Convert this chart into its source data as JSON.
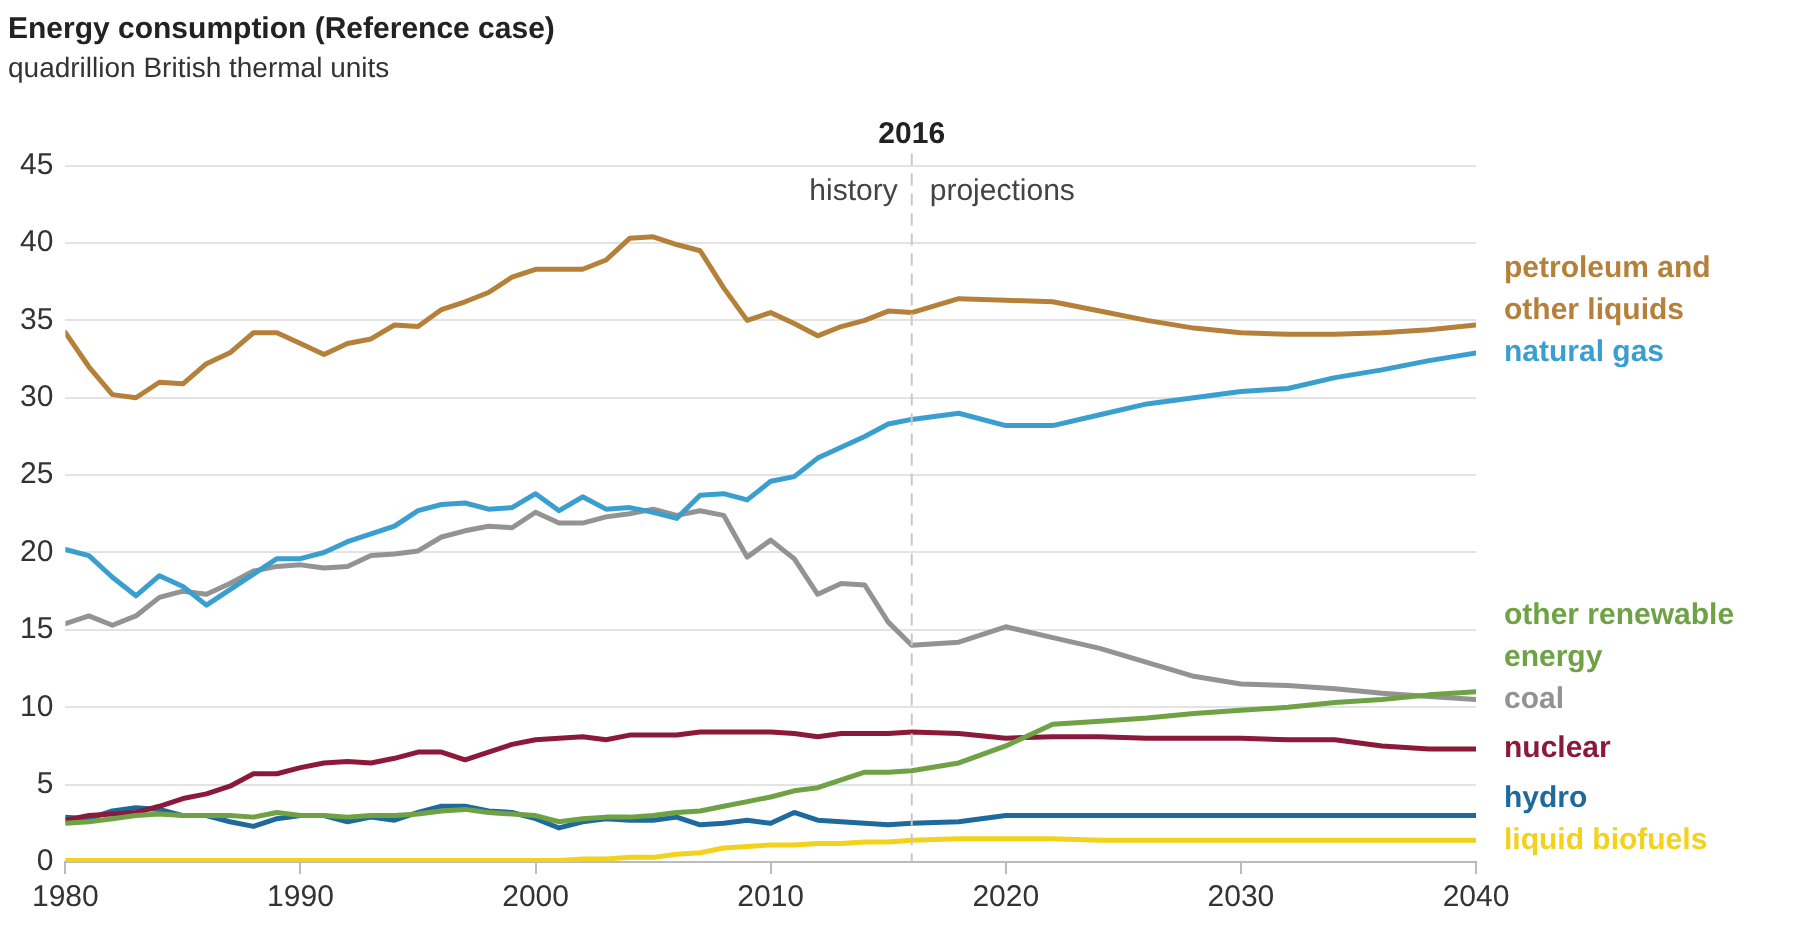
{
  "chart_data": {
    "type": "line",
    "title": "Energy consumption (Reference case)",
    "subtitle": "quadrillion British thermal units",
    "x": [
      1980,
      1981,
      1982,
      1983,
      1984,
      1985,
      1986,
      1987,
      1988,
      1989,
      1990,
      1991,
      1992,
      1993,
      1994,
      1995,
      1996,
      1997,
      1998,
      1999,
      2000,
      2001,
      2002,
      2003,
      2004,
      2005,
      2006,
      2007,
      2008,
      2009,
      2010,
      2011,
      2012,
      2013,
      2014,
      2015,
      2016,
      2018,
      2020,
      2022,
      2024,
      2026,
      2028,
      2030,
      2032,
      2034,
      2036,
      2038,
      2040
    ],
    "series": [
      {
        "name": "petroleum and other liquids",
        "color": "#b5813a",
        "values": [
          34.2,
          32.0,
          30.2,
          30.0,
          31.0,
          30.9,
          32.2,
          32.9,
          34.2,
          34.2,
          33.5,
          32.8,
          33.5,
          33.8,
          34.7,
          34.6,
          35.7,
          36.2,
          36.8,
          37.8,
          38.3,
          38.3,
          38.3,
          38.9,
          40.3,
          40.4,
          39.9,
          39.5,
          37.1,
          35.0,
          35.5,
          34.8,
          34.0,
          34.6,
          35.0,
          35.6,
          35.5,
          36.4,
          36.3,
          36.2,
          35.6,
          35.0,
          34.5,
          34.2,
          34.1,
          34.1,
          34.2,
          34.4,
          34.7
        ]
      },
      {
        "name": "natural gas",
        "color": "#3a9fcf",
        "values": [
          20.2,
          19.8,
          18.4,
          17.2,
          18.5,
          17.8,
          16.6,
          17.6,
          18.6,
          19.6,
          19.6,
          20.0,
          20.7,
          21.2,
          21.7,
          22.7,
          23.1,
          23.2,
          22.8,
          22.9,
          23.8,
          22.7,
          23.6,
          22.8,
          22.9,
          22.6,
          22.2,
          23.7,
          23.8,
          23.4,
          24.6,
          24.9,
          26.1,
          26.8,
          27.5,
          28.3,
          28.6,
          29.0,
          28.2,
          28.2,
          28.9,
          29.6,
          30.0,
          30.4,
          30.6,
          31.3,
          31.8,
          32.4,
          32.9
        ]
      },
      {
        "name": "other renewable energy",
        "color": "#6fa245",
        "values": [
          2.5,
          2.6,
          2.8,
          3.0,
          3.1,
          3.0,
          3.0,
          3.0,
          2.9,
          3.2,
          3.0,
          3.0,
          2.9,
          3.0,
          3.0,
          3.1,
          3.3,
          3.4,
          3.2,
          3.1,
          3.0,
          2.6,
          2.8,
          2.9,
          2.9,
          3.0,
          3.2,
          3.3,
          3.6,
          3.9,
          4.2,
          4.6,
          4.8,
          5.3,
          5.8,
          5.8,
          5.9,
          6.4,
          7.5,
          8.9,
          9.1,
          9.3,
          9.6,
          9.8,
          10.0,
          10.3,
          10.5,
          10.8,
          11.0
        ]
      },
      {
        "name": "coal",
        "color": "#939393",
        "values": [
          15.4,
          15.9,
          15.3,
          15.9,
          17.1,
          17.5,
          17.3,
          18.0,
          18.8,
          19.1,
          19.2,
          19.0,
          19.1,
          19.8,
          19.9,
          20.1,
          21.0,
          21.4,
          21.7,
          21.6,
          22.6,
          21.9,
          21.9,
          22.3,
          22.5,
          22.8,
          22.4,
          22.7,
          22.4,
          19.7,
          20.8,
          19.6,
          17.3,
          18.0,
          17.9,
          15.5,
          14.0,
          14.2,
          15.2,
          14.5,
          13.8,
          12.9,
          12.0,
          11.5,
          11.4,
          11.2,
          10.9,
          10.7,
          10.5
        ]
      },
      {
        "name": "nuclear",
        "color": "#8b1a3a",
        "values": [
          2.7,
          3.0,
          3.1,
          3.2,
          3.6,
          4.1,
          4.4,
          4.9,
          5.7,
          5.7,
          6.1,
          6.4,
          6.5,
          6.4,
          6.7,
          7.1,
          7.1,
          6.6,
          7.1,
          7.6,
          7.9,
          8.0,
          8.1,
          7.9,
          8.2,
          8.2,
          8.2,
          8.4,
          8.4,
          8.4,
          8.4,
          8.3,
          8.1,
          8.3,
          8.3,
          8.3,
          8.4,
          8.3,
          8.0,
          8.1,
          8.1,
          8.0,
          8.0,
          8.0,
          7.9,
          7.9,
          7.5,
          7.3,
          7.3
        ]
      },
      {
        "name": "hydro",
        "color": "#1f6a9c",
        "values": [
          2.9,
          2.8,
          3.3,
          3.5,
          3.4,
          3.0,
          3.0,
          2.6,
          2.3,
          2.8,
          3.0,
          3.0,
          2.6,
          2.9,
          2.7,
          3.2,
          3.6,
          3.6,
          3.3,
          3.2,
          2.8,
          2.2,
          2.6,
          2.8,
          2.7,
          2.7,
          2.9,
          2.4,
          2.5,
          2.7,
          2.5,
          3.2,
          2.7,
          2.6,
          2.5,
          2.4,
          2.5,
          2.6,
          3.0,
          3.0,
          3.0,
          3.0,
          3.0,
          3.0,
          3.0,
          3.0,
          3.0,
          3.0,
          3.0
        ]
      },
      {
        "name": "liquid biofuels",
        "color": "#f2d21a",
        "values": [
          0.1,
          0.1,
          0.1,
          0.1,
          0.1,
          0.1,
          0.1,
          0.1,
          0.1,
          0.1,
          0.1,
          0.1,
          0.1,
          0.1,
          0.1,
          0.1,
          0.1,
          0.1,
          0.1,
          0.1,
          0.1,
          0.1,
          0.2,
          0.2,
          0.3,
          0.3,
          0.5,
          0.6,
          0.9,
          1.0,
          1.1,
          1.1,
          1.2,
          1.2,
          1.3,
          1.3,
          1.4,
          1.5,
          1.5,
          1.5,
          1.4,
          1.4,
          1.4,
          1.4,
          1.4,
          1.4,
          1.4,
          1.4,
          1.4
        ]
      }
    ],
    "xlim": [
      1980,
      2040
    ],
    "xticks": [
      1980,
      1990,
      2000,
      2010,
      2020,
      2030,
      2040
    ],
    "ylim": [
      0,
      45
    ],
    "yticks": [
      0,
      5,
      10,
      15,
      20,
      25,
      30,
      35,
      40,
      45
    ],
    "ref_lines": [
      {
        "axis": "x",
        "value": 2016,
        "label": "2016",
        "color": "#c8c8c8",
        "line_style": "dashed"
      }
    ],
    "annotations": [
      "history",
      "projections"
    ],
    "grid": "y",
    "legend": false,
    "marker": "none",
    "line_style": "solid"
  }
}
